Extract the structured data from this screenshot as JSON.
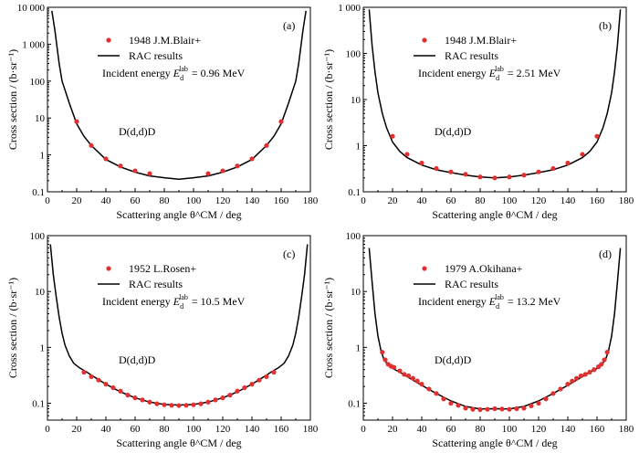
{
  "chart_data": [
    {
      "type": "scatter",
      "panel_label": "(a)",
      "xlabel": "Scattering angle θ^CM / deg",
      "ylabel": "Cross section / (b·sr⁻¹)",
      "xlim": [
        0,
        180
      ],
      "ylim": [
        0.1,
        10000
      ],
      "yscale": "log",
      "xticks": [
        "0",
        "20",
        "40",
        "60",
        "80",
        "100",
        "120",
        "140",
        "160",
        "180"
      ],
      "yticks": [
        "0.1",
        "1",
        "10",
        "100",
        "1 000",
        "10 000"
      ],
      "annotation": "D(d,d)D",
      "energy_label": "Incident energy",
      "energy_value": "= 0.96 MeV",
      "legend": [
        "1948 J.M.Blair+",
        "RAC results"
      ],
      "series": [
        {
          "name": "1948 J.M.Blair+",
          "kind": "points",
          "color": "#e03030",
          "x": [
            20,
            30,
            40,
            50,
            60,
            70,
            110,
            120,
            130,
            140,
            150,
            160
          ],
          "y": [
            8,
            1.8,
            0.78,
            0.5,
            0.37,
            0.31,
            0.31,
            0.37,
            0.5,
            0.78,
            1.8,
            8
          ]
        },
        {
          "name": "RAC results",
          "kind": "line",
          "color": "#000000",
          "x": [
            3,
            5,
            8,
            10,
            15,
            20,
            25,
            30,
            40,
            50,
            60,
            70,
            80,
            90,
            100,
            110,
            120,
            130,
            140,
            150,
            155,
            160,
            165,
            170,
            172,
            175,
            177
          ],
          "y": [
            8000,
            2500,
            300,
            100,
            25,
            7,
            3.2,
            1.8,
            0.75,
            0.47,
            0.34,
            0.27,
            0.24,
            0.22,
            0.24,
            0.27,
            0.34,
            0.47,
            0.75,
            1.8,
            3.2,
            7,
            25,
            100,
            300,
            2500,
            8000
          ]
        }
      ]
    },
    {
      "type": "scatter",
      "panel_label": "(b)",
      "xlabel": "Scattering angle θ^CM / deg",
      "ylabel": "Cross section / (b·sr⁻¹)",
      "xlim": [
        0,
        180
      ],
      "ylim": [
        0.1,
        1000
      ],
      "yscale": "log",
      "xticks": [
        "0",
        "20",
        "40",
        "60",
        "80",
        "100",
        "120",
        "140",
        "160",
        "180"
      ],
      "yticks": [
        "0.1",
        "1",
        "10",
        "100",
        "1 000"
      ],
      "annotation": "D(d,d)D",
      "energy_label": "Incident energy",
      "energy_value": "= 2.51 MeV",
      "legend": [
        "1948 J.M.Blair+",
        "RAC results"
      ],
      "series": [
        {
          "name": "1948 J.M.Blair+",
          "kind": "points",
          "color": "#e03030",
          "x": [
            20,
            30,
            40,
            50,
            60,
            70,
            80,
            90,
            100,
            110,
            120,
            130,
            140,
            150,
            160
          ],
          "y": [
            1.6,
            0.65,
            0.42,
            0.32,
            0.27,
            0.24,
            0.21,
            0.2,
            0.21,
            0.23,
            0.27,
            0.32,
            0.42,
            0.65,
            1.6
          ]
        },
        {
          "name": "RAC results",
          "kind": "line",
          "color": "#000000",
          "x": [
            4,
            6,
            8,
            10,
            13,
            16,
            20,
            25,
            30,
            40,
            50,
            60,
            70,
            80,
            90,
            100,
            110,
            120,
            130,
            140,
            150,
            155,
            160,
            164,
            167,
            170,
            172,
            174,
            176
          ],
          "y": [
            900,
            150,
            40,
            14,
            5,
            2.4,
            1.2,
            0.75,
            0.55,
            0.38,
            0.3,
            0.26,
            0.23,
            0.21,
            0.2,
            0.21,
            0.23,
            0.26,
            0.3,
            0.38,
            0.55,
            0.75,
            1.2,
            2.4,
            5,
            14,
            40,
            150,
            900
          ]
        }
      ]
    },
    {
      "type": "scatter",
      "panel_label": "(c)",
      "xlabel": "Scattering angle θ^CM / deg",
      "ylabel": "Cross section / (b·sr⁻¹)",
      "xlim": [
        0,
        180
      ],
      "ylim": [
        0.05,
        100
      ],
      "yscale": "log",
      "xticks": [
        "0",
        "20",
        "40",
        "60",
        "80",
        "100",
        "120",
        "140",
        "160",
        "180"
      ],
      "yticks": [
        "0.1",
        "1",
        "10",
        "100"
      ],
      "annotation": "D(d,d)D",
      "energy_label": "Incident energy",
      "energy_value": "= 10.5 MeV",
      "legend": [
        "1952 L.Rosen+",
        "RAC results"
      ],
      "series": [
        {
          "name": "1952 L.Rosen+",
          "kind": "points",
          "color": "#e03030",
          "x": [
            25,
            30,
            35,
            40,
            45,
            50,
            55,
            60,
            65,
            70,
            75,
            80,
            85,
            90,
            95,
            100,
            105,
            110,
            115,
            120,
            125,
            130,
            135,
            140,
            145,
            150,
            155
          ],
          "y": [
            0.36,
            0.3,
            0.26,
            0.22,
            0.19,
            0.165,
            0.14,
            0.125,
            0.115,
            0.105,
            0.098,
            0.094,
            0.092,
            0.091,
            0.092,
            0.094,
            0.098,
            0.105,
            0.115,
            0.125,
            0.14,
            0.165,
            0.19,
            0.22,
            0.26,
            0.3,
            0.36
          ]
        },
        {
          "name": "RAC results",
          "kind": "line",
          "color": "#000000",
          "x": [
            2,
            4,
            6,
            8,
            10,
            12,
            15,
            18,
            22,
            27,
            30,
            40,
            50,
            60,
            70,
            80,
            90,
            100,
            110,
            120,
            130,
            140,
            150,
            153,
            158,
            162,
            165,
            168,
            170,
            172,
            174,
            176,
            178
          ],
          "y": [
            70,
            20,
            8,
            3.5,
            1.8,
            1.1,
            0.7,
            0.52,
            0.43,
            0.36,
            0.32,
            0.22,
            0.16,
            0.125,
            0.105,
            0.095,
            0.093,
            0.095,
            0.105,
            0.125,
            0.16,
            0.22,
            0.32,
            0.36,
            0.43,
            0.52,
            0.7,
            1.1,
            1.8,
            3.5,
            8,
            20,
            70
          ]
        }
      ]
    },
    {
      "type": "scatter",
      "panel_label": "(d)",
      "xlabel": "Scattering angle θ^CM / deg",
      "ylabel": "Cross section / (b·sr⁻¹)",
      "xlim": [
        0,
        180
      ],
      "ylim": [
        0.05,
        100
      ],
      "yscale": "log",
      "xticks": [
        "0",
        "20",
        "40",
        "60",
        "80",
        "100",
        "120",
        "140",
        "160",
        "180"
      ],
      "yticks": [
        "0.1",
        "1",
        "10",
        "100"
      ],
      "annotation": "D(d,d)D",
      "energy_label": "Incident energy",
      "energy_value": "= 13.2 MeV",
      "legend": [
        "1979 A.Okihana+",
        "RAC results"
      ],
      "series": [
        {
          "name": "1979 A.Okihana+",
          "kind": "points",
          "color": "#e03030",
          "x": [
            13,
            15,
            17,
            19,
            21,
            25,
            28,
            31,
            34,
            37,
            40,
            45,
            50,
            55,
            60,
            65,
            70,
            75,
            80,
            85,
            90,
            95,
            100,
            105,
            110,
            115,
            120,
            125,
            130,
            135,
            140,
            143,
            146,
            149,
            152,
            155,
            158,
            161,
            163,
            165,
            167
          ],
          "y": [
            0.82,
            0.6,
            0.5,
            0.46,
            0.44,
            0.38,
            0.33,
            0.31,
            0.28,
            0.25,
            0.22,
            0.18,
            0.15,
            0.12,
            0.1,
            0.092,
            0.082,
            0.078,
            0.077,
            0.078,
            0.08,
            0.079,
            0.078,
            0.08,
            0.082,
            0.09,
            0.1,
            0.12,
            0.15,
            0.18,
            0.22,
            0.25,
            0.28,
            0.31,
            0.33,
            0.36,
            0.4,
            0.45,
            0.5,
            0.6,
            0.82
          ]
        },
        {
          "name": "RAC results",
          "kind": "line",
          "color": "#000000",
          "x": [
            4,
            6,
            8,
            10,
            12,
            14,
            17,
            20,
            25,
            30,
            40,
            50,
            60,
            70,
            80,
            90,
            100,
            110,
            120,
            130,
            140,
            150,
            155,
            160,
            163,
            166,
            168,
            170,
            172,
            174,
            176
          ],
          "y": [
            60,
            15,
            4,
            1.6,
            0.9,
            0.62,
            0.48,
            0.42,
            0.36,
            0.3,
            0.21,
            0.15,
            0.11,
            0.088,
            0.079,
            0.08,
            0.079,
            0.088,
            0.11,
            0.15,
            0.21,
            0.3,
            0.36,
            0.42,
            0.48,
            0.62,
            0.9,
            1.6,
            4,
            15,
            60
          ]
        }
      ]
    }
  ]
}
